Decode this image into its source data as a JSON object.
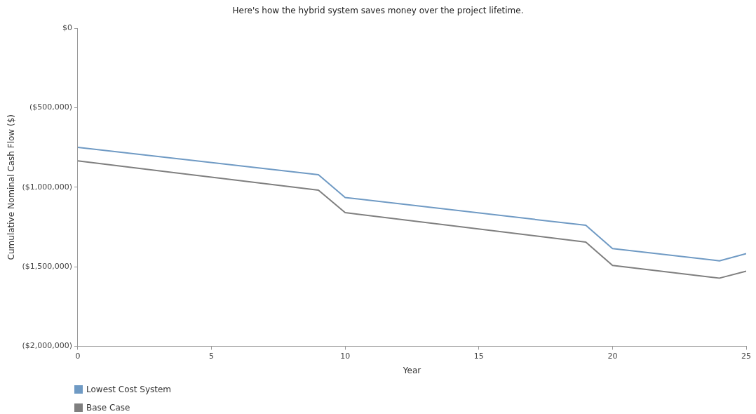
{
  "chart_data": {
    "type": "line",
    "title": "Here's how the hybrid system saves money over the project lifetime.",
    "xlabel": "Year",
    "ylabel": "Cumulative Nominal Cash Flow ($)",
    "x": [
      0,
      9,
      10,
      19,
      20,
      24,
      25
    ],
    "series": [
      {
        "name": "Lowest Cost System",
        "color": "#6f9ac4",
        "values": [
          -750000,
          -922000,
          -1065000,
          -1240000,
          -1386000,
          -1463000,
          -1418000
        ]
      },
      {
        "name": "Base Case",
        "color": "#7f7f7f",
        "values": [
          -835000,
          -1019000,
          -1160000,
          -1345000,
          -1492000,
          -1572000,
          -1528000
        ]
      }
    ],
    "xlim": [
      0,
      25
    ],
    "xticks": [
      0,
      5,
      10,
      15,
      20,
      25
    ],
    "ylim": [
      -2000000,
      0
    ],
    "yticks": [
      {
        "value": 0,
        "label": "$0"
      },
      {
        "value": -500000,
        "label": "($500,000)"
      },
      {
        "value": -1000000,
        "label": "($1,000,000)"
      },
      {
        "value": -1500000,
        "label": "($1,500,000)"
      },
      {
        "value": -2000000,
        "label": "($2,000,000)"
      }
    ],
    "grid": false,
    "legend": "bottom left",
    "marker": "none",
    "line_style": "solid"
  }
}
